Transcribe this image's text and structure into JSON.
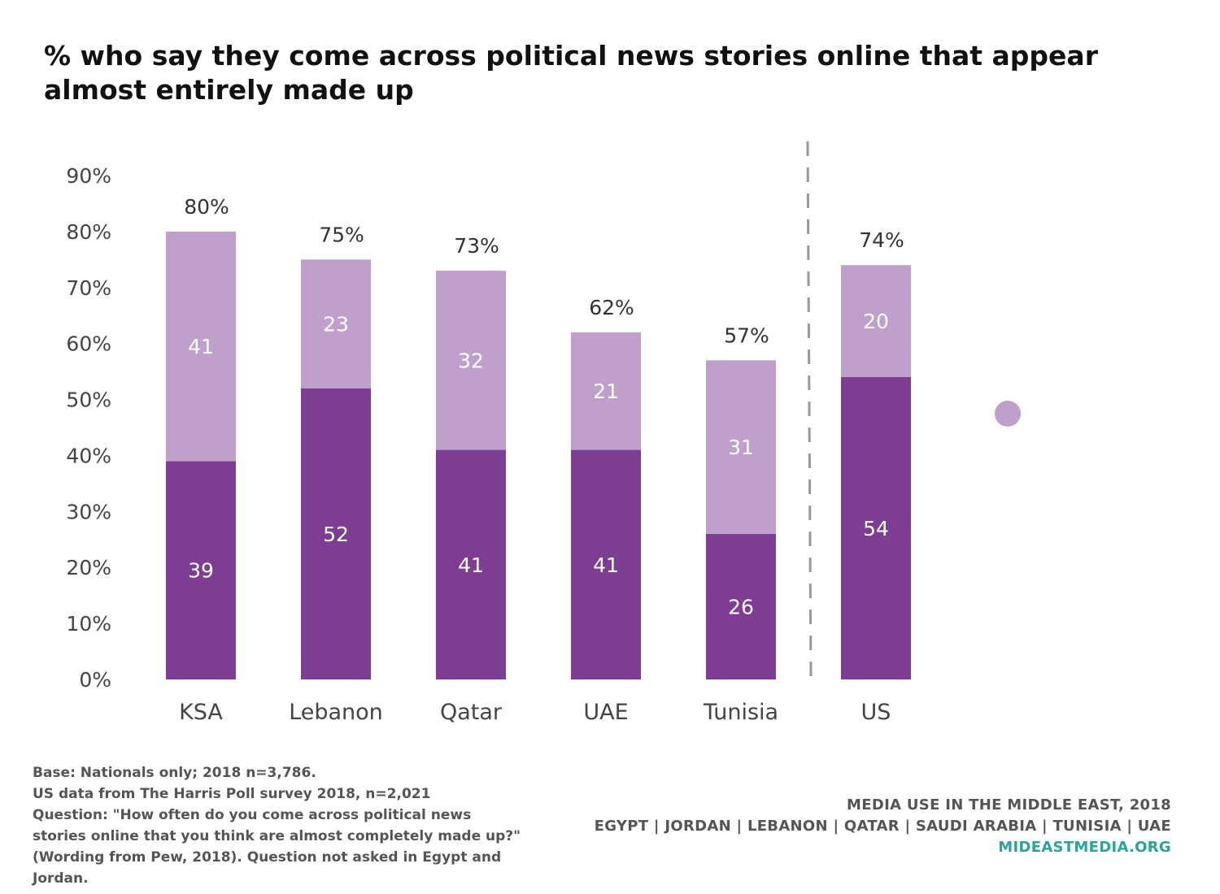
{
  "title": "% who say they come across political news stories online that appear almost entirely made up",
  "chart_data": {
    "type": "bar",
    "stacked": true,
    "categories": [
      "KSA",
      "Lebanon",
      "Qatar",
      "UAE",
      "Tunisia",
      "US"
    ],
    "series": [
      {
        "values": [
          39,
          52,
          41,
          41,
          26,
          54
        ],
        "color": "#7d3d92"
      },
      {
        "values": [
          41,
          23,
          32,
          21,
          31,
          20
        ],
        "color": "#bfa0cc"
      }
    ],
    "totals": [
      "80%",
      "75%",
      "73%",
      "62%",
      "57%",
      "74%"
    ],
    "y_ticks": [
      "0%",
      "10%",
      "20%",
      "30%",
      "40%",
      "50%",
      "60%",
      "70%",
      "80%",
      "90%"
    ],
    "ylim": [
      0,
      90
    ],
    "grid": false,
    "separator_before": "US"
  },
  "footnote": {
    "lines": [
      "Base: Nationals only; 2018 n=3,786.",
      "US data from The Harris Poll survey 2018, n=2,021",
      "Question: \"How often do you come across political news",
      "stories online that you think are almost completely made up?\"",
      "(Wording from Pew, 2018). Question not asked in Egypt and",
      "Jordan."
    ]
  },
  "brand": {
    "line1": "MEDIA USE IN THE MIDDLE EAST, 2018",
    "line2": "EGYPT | JORDAN | LEBANON | QATAR | SAUDI ARABIA | TUNISIA | UAE",
    "site": "MIDEASTMEDIA.ORG"
  }
}
